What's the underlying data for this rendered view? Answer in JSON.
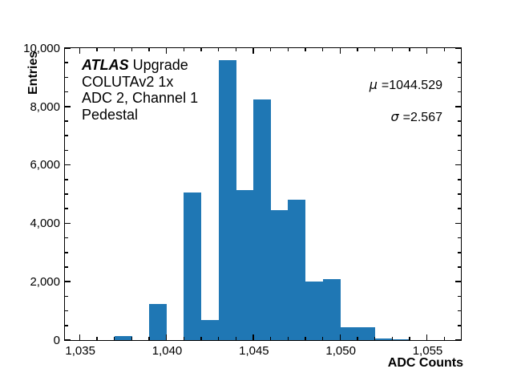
{
  "figure": {
    "background": "#ffffff",
    "axis_color": "#000000",
    "bar_color": "#1f77b4"
  },
  "annotations": {
    "experiment": "ATLAS",
    "experiment_suffix": " Upgrade",
    "line2": "COLUTAv2 1x",
    "line3": "ADC 2, Channel 1",
    "line4": "Pedestal",
    "mu_symbol": "μ",
    "mu_text": "=1044.529",
    "sigma_symbol": "σ",
    "sigma_text": "=2.567"
  },
  "chart_data": {
    "type": "bar",
    "style": "histogram",
    "title": "",
    "xlabel": "ADC Counts",
    "ylabel": "Entries",
    "xlim": [
      1034.15,
      1056.95
    ],
    "ylim": [
      0,
      10000
    ],
    "grid": false,
    "legend": "none",
    "bin_width": 1,
    "bin_left_edges": [
      1037,
      1038,
      1039,
      1040,
      1041,
      1042,
      1043,
      1044,
      1045,
      1046,
      1047,
      1048,
      1049,
      1050,
      1051,
      1052,
      1053
    ],
    "counts": [
      150,
      0,
      1250,
      0,
      5050,
      700,
      9600,
      5150,
      8250,
      4450,
      4800,
      2000,
      2100,
      450,
      450,
      60,
      20
    ],
    "x_major_ticks": [
      1035,
      1040,
      1045,
      1050,
      1055
    ],
    "x_tick_labels": [
      "1,035",
      "1,040",
      "1,045",
      "1,050",
      "1,055"
    ],
    "x_minor_step": 1,
    "y_major_ticks": [
      0,
      2000,
      4000,
      6000,
      8000,
      10000
    ],
    "y_tick_labels": [
      "0",
      "2,000",
      "4,000",
      "6,000",
      "8,000",
      "10,000"
    ],
    "y_minor_step": 500,
    "stats": {
      "mu": 1044.529,
      "sigma": 2.567
    }
  }
}
